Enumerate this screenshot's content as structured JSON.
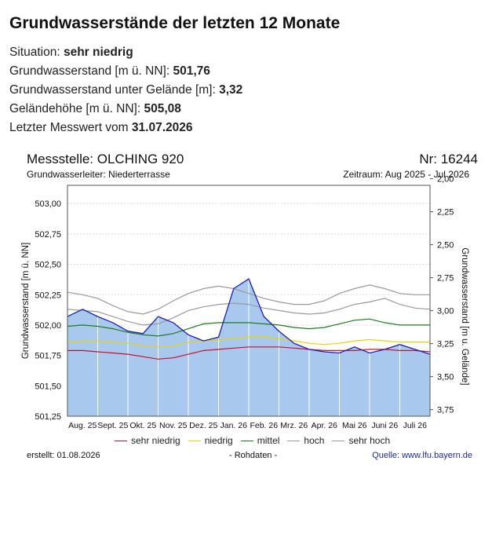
{
  "page": {
    "title": "Grundwasserstände der letzten 12 Monate",
    "situation_label": "Situation:",
    "situation_value": "sehr niedrig",
    "level_label": "Grundwasserstand [m ü. NN]:",
    "level_value": "501,76",
    "depth_label": "Grundwasserstand unter Gelände [m]:",
    "depth_value": "3,32",
    "ground_label": "Geländehöhe [m ü. NN]:",
    "ground_value": "505,08",
    "last_label": "Letzter Messwert vom",
    "last_value": "31.07.2026"
  },
  "chart_header": {
    "station": "Messstelle: OLCHING 920",
    "number": "Nr: 16244",
    "aquifer": "Grundwasserleiter:   Niederterrasse",
    "period": "Zeitraum: Aug 2025 - Jul 2026"
  },
  "footer": {
    "created": "erstellt:  01.08.2026",
    "raw": "- Rohdaten -",
    "source": "Quelle: www.lfu.bayern.de"
  },
  "colors": {
    "fill": "#a9c8ee",
    "measured": "#1b1fb5",
    "sehr_niedrig": "#c8102e",
    "niedrig": "#e6d40a",
    "mittel": "#1f7a1f",
    "hoch": "#9a9a9a",
    "sehr_hoch": "#9a9a9a"
  },
  "chart_data": {
    "type": "area",
    "ylabel": "Grundwasserstand [m ü. NN]",
    "y2label": "Grundwasserstand [m u. Gelände]",
    "ylim": [
      501.25,
      503.15
    ],
    "y2lim": [
      2.05,
      3.8
    ],
    "yticks": [
      "501,25",
      "501,50",
      "501,75",
      "502,00",
      "502,25",
      "502,50",
      "502,75",
      "503,00"
    ],
    "y2ticks": [
      "2,00",
      "2,25",
      "2,50",
      "2,75",
      "3,00",
      "3,25",
      "3,50",
      "3,75"
    ],
    "xlabels": [
      "Aug. 25",
      "Sept. 25",
      "Okt. 25",
      "Nov. 25",
      "Dez. 25",
      "Jan. 26",
      "Feb. 26",
      "Mrz. 26",
      "Apr. 26",
      "Mai 26",
      "Juni 26",
      "Juli 26"
    ],
    "grid": true,
    "x": [
      0,
      0.5,
      1,
      1.5,
      2,
      2.5,
      3,
      3.5,
      4,
      4.5,
      5,
      5.5,
      6,
      6.5,
      7,
      7.5,
      8,
      8.5,
      9,
      9.5,
      10,
      10.5,
      11,
      11.5,
      12
    ],
    "series": [
      {
        "name": "Messwerte",
        "values": [
          502.07,
          502.13,
          502.07,
          502.02,
          501.95,
          501.93,
          502.07,
          502.02,
          501.92,
          501.87,
          501.9,
          502.3,
          502.38,
          502.07,
          501.95,
          501.85,
          501.8,
          501.78,
          501.77,
          501.82,
          501.77,
          501.8,
          501.84,
          501.8,
          501.76
        ]
      },
      {
        "name": "sehr niedrig",
        "values": [
          501.79,
          501.79,
          501.78,
          501.77,
          501.76,
          501.74,
          501.72,
          501.73,
          501.76,
          501.79,
          501.8,
          501.81,
          501.82,
          501.82,
          501.82,
          501.81,
          501.8,
          501.79,
          501.79,
          501.79,
          501.8,
          501.8,
          501.79,
          501.79,
          501.78
        ]
      },
      {
        "name": "niedrig",
        "values": [
          501.86,
          501.87,
          501.87,
          501.86,
          501.85,
          501.83,
          501.82,
          501.83,
          501.86,
          501.87,
          501.88,
          501.89,
          501.9,
          501.9,
          501.89,
          501.87,
          501.85,
          501.84,
          501.85,
          501.87,
          501.88,
          501.87,
          501.86,
          501.86,
          501.86
        ]
      },
      {
        "name": "mittel",
        "values": [
          501.99,
          502.0,
          501.99,
          501.97,
          501.94,
          501.92,
          501.91,
          501.93,
          501.97,
          502.01,
          502.02,
          502.02,
          502.02,
          502.01,
          502.0,
          501.98,
          501.97,
          501.98,
          502.01,
          502.04,
          502.05,
          502.02,
          502.0,
          502.0,
          502.0
        ]
      },
      {
        "name": "hoch",
        "values": [
          502.13,
          502.12,
          502.11,
          502.07,
          502.03,
          502.0,
          502.01,
          502.06,
          502.12,
          502.15,
          502.17,
          502.18,
          502.17,
          502.14,
          502.12,
          502.1,
          502.09,
          502.1,
          502.13,
          502.17,
          502.19,
          502.22,
          502.17,
          502.14,
          502.13
        ]
      },
      {
        "name": "sehr hoch",
        "values": [
          502.27,
          502.25,
          502.22,
          502.16,
          502.11,
          502.09,
          502.13,
          502.2,
          502.26,
          502.3,
          502.32,
          502.3,
          502.26,
          502.22,
          502.19,
          502.17,
          502.17,
          502.2,
          502.26,
          502.3,
          502.33,
          502.3,
          502.26,
          502.25,
          502.25
        ]
      }
    ],
    "legend": [
      "sehr niedrig",
      "niedrig",
      "mittel",
      "hoch",
      "sehr hoch"
    ]
  }
}
